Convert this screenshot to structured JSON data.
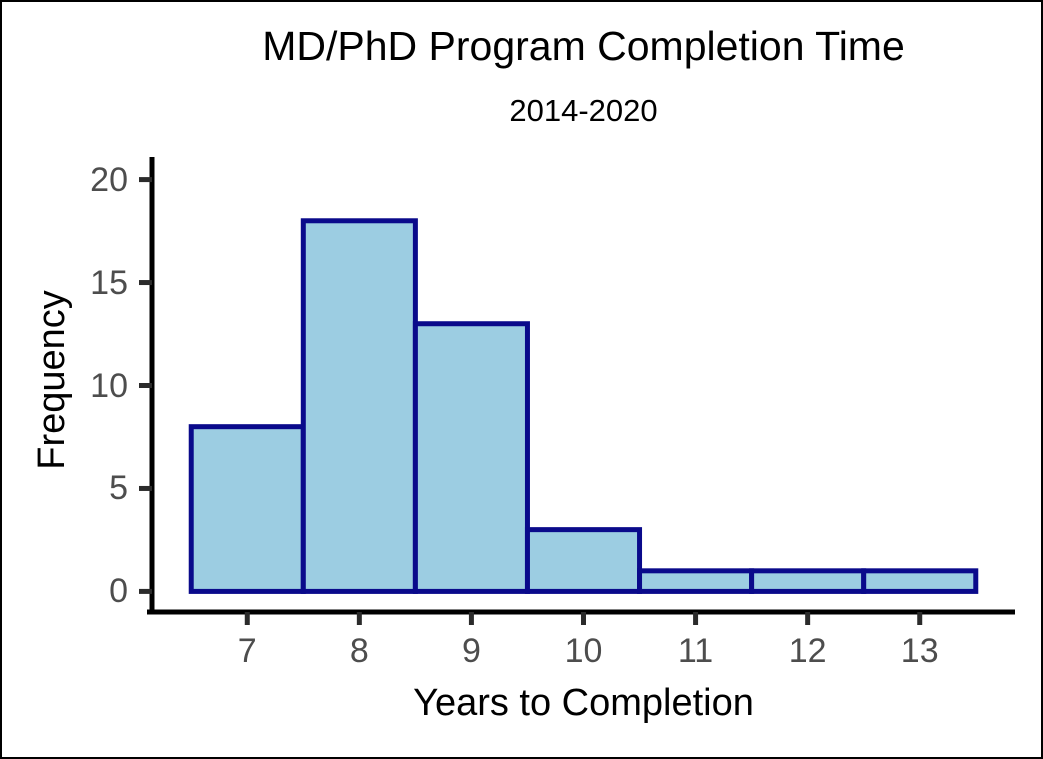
{
  "chart_data": {
    "type": "histogram",
    "title": "MD/PhD Program Completion Time",
    "subtitle": "2014-2020",
    "xlabel": "Years to Completion",
    "ylabel": "Frequency",
    "bin_centers": [
      7,
      8,
      9,
      10,
      11,
      12,
      13
    ],
    "bin_width": 1,
    "values": [
      8,
      18,
      13,
      3,
      1,
      1,
      1
    ],
    "x_ticks": [
      7,
      8,
      9,
      10,
      11,
      12,
      13
    ],
    "y_ticks": [
      0,
      5,
      10,
      15,
      20
    ],
    "xlim": [
      6.15,
      13.85
    ],
    "ylim": [
      -1,
      21
    ],
    "grid": false,
    "legend": false,
    "bar_fill": "#9CCDE2",
    "bar_stroke": "#0A0A8B",
    "axis_color": "#000000",
    "tick_color": "#2b2b2b",
    "tick_label_color": "#4d4d4d"
  }
}
